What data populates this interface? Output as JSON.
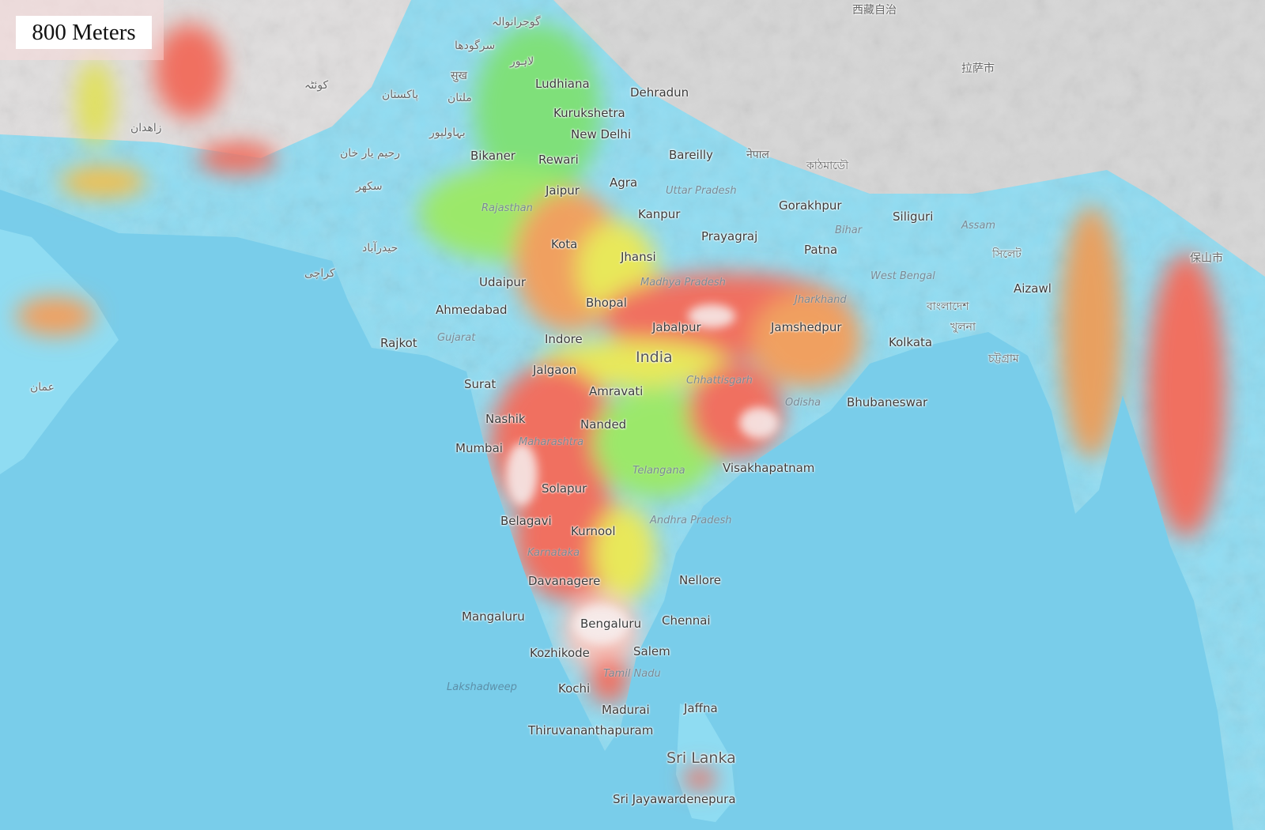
{
  "scale_label": "800 Meters",
  "colors": {
    "sea": "#79cdea",
    "lowland": "#8fdcf2",
    "low_green": "#7fe07a",
    "mid_yellow": "#e8e85a",
    "high_red": "#f07060",
    "peak_white": "#f2f2f2",
    "mountain_gray": "#d4d4d4"
  },
  "places": {
    "cities": [
      "Ludhiana",
      "Dehradun",
      "Kurukshetra",
      "New Delhi",
      "Bikaner",
      "Rewari",
      "Bareilly",
      "Agra",
      "Jaipur",
      "Kanpur",
      "Gorakhpur",
      "Siliguri",
      "Prayagraj",
      "Kota",
      "Patna",
      "Jhansi",
      "Udaipur",
      "Aizawl",
      "Bhopal",
      "Ahmedabad",
      "Jabalpur",
      "Jamshedpur",
      "Rajkot",
      "Indore",
      "Kolkata",
      "Jalgaon",
      "Surat",
      "Amravati",
      "Bhubaneswar",
      "Nashik",
      "Nanded",
      "Mumbai",
      "Visakhapatnam",
      "Solapur",
      "Belagavi",
      "Kurnool",
      "Davanagere",
      "Nellore",
      "Mangaluru",
      "Chennai",
      "Bengaluru",
      "Kozhikode",
      "Salem",
      "Kochi",
      "Madurai",
      "Jaffna",
      "Thiruvananthapuram",
      "Sri Jayawardenepura"
    ],
    "regions": [
      "Uttar Pradesh",
      "Rajasthan",
      "Assam",
      "Bihar",
      "Madhya Pradesh",
      "West Bengal",
      "Jharkhand",
      "Gujarat",
      "Chhattisgarh",
      "Odisha",
      "Maharashtra",
      "Telangana",
      "Andhra Pradesh",
      "Karnataka",
      "Tamil Nadu"
    ],
    "countries": [
      "India",
      "Sri Lanka"
    ],
    "water": [
      "Lakshadweep"
    ],
    "foreign": [
      "پاکستان",
      "ملتان",
      "کراچی",
      "لاہور",
      "सुख",
      "नेपाल",
      "বাংলাদেশ",
      "拉萨市",
      "زاهدان",
      "عمان",
      "سکھر",
      "حیدرآباد",
      "بہاولپور",
      "رحیم یار خان",
      "کوئٹہ",
      "سرگودھا",
      "گوجرانوالہ",
      "西藏自治",
      "খুলনা",
      "চট্টগ্রাম",
      "সিলেট",
      "কাঠমাডৌ",
      "保山市"
    ]
  }
}
